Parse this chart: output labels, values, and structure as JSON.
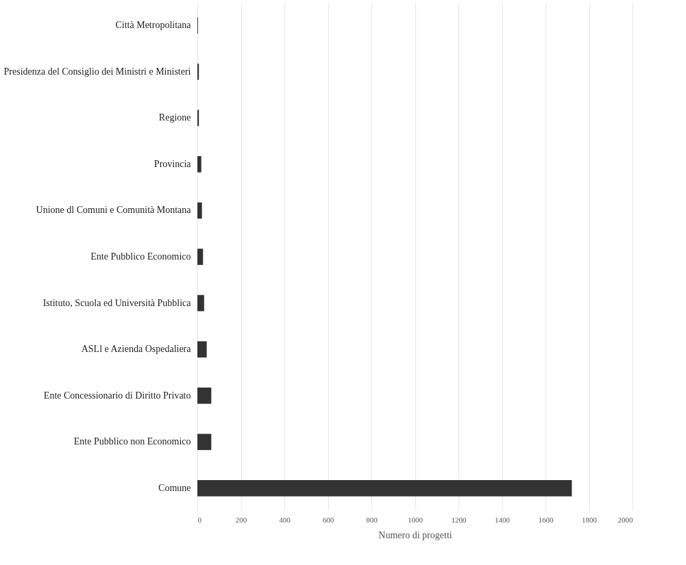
{
  "chart_data": {
    "type": "bar",
    "orientation": "horizontal",
    "xlabel": "Numero di progetti",
    "categories": [
      "Città Metropolitana",
      "Presidenza del Consiglio dei Ministri e Ministeri",
      "Regione",
      "Provincia",
      "Unione dl Comuni e Comunità Montana",
      "Ente Pubblico Economico",
      "Istituto, Scuola ed Università Pubblica",
      "ASLl e Azienda Ospedaliera",
      "Ente Concessionario di Diritto Privato",
      "Ente Pubblico non Economico",
      "Comune"
    ],
    "values": [
      3,
      7,
      7,
      18,
      21,
      26,
      31,
      43,
      64,
      64,
      1721
    ],
    "color": "#333333",
    "xlim": [
      0,
      2000
    ],
    "xticks": [
      0,
      200,
      400,
      600,
      800,
      1000,
      1200,
      1400,
      1600,
      1800,
      2000
    ],
    "grid": "x"
  }
}
